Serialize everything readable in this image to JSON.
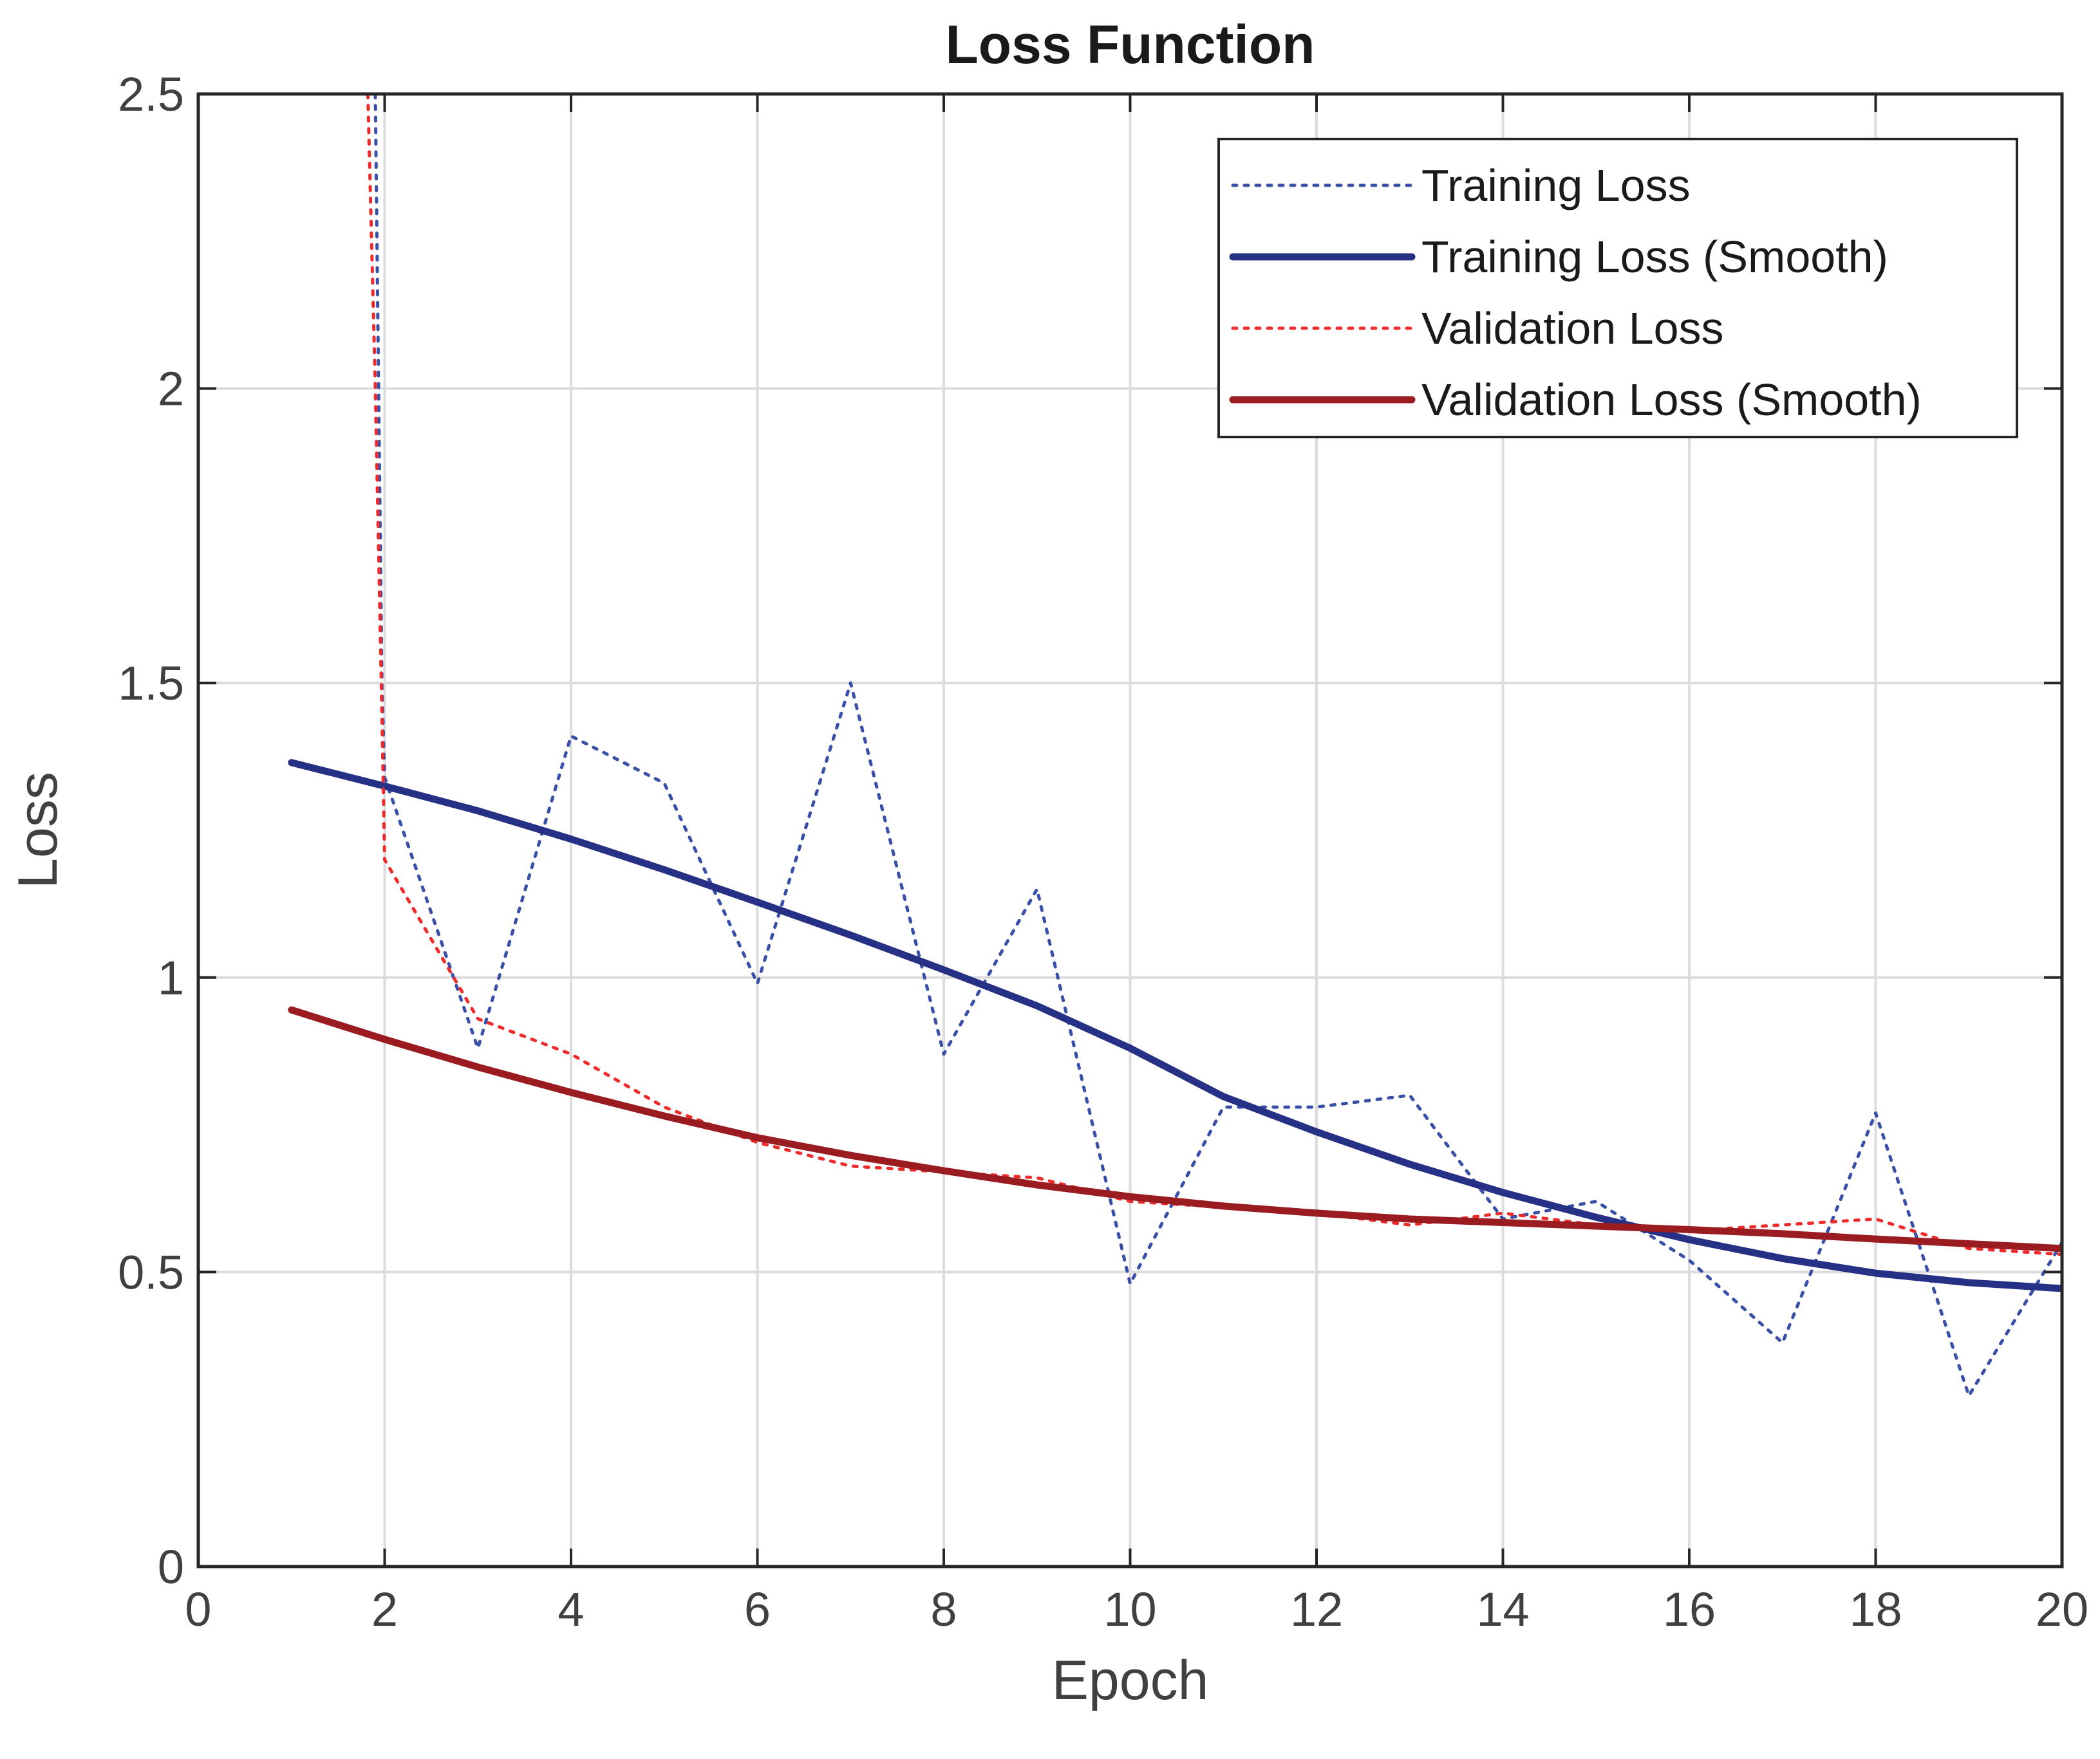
{
  "chart_data": {
    "type": "line",
    "title": "Loss Function",
    "xlabel": "Epoch",
    "ylabel": "Loss",
    "xlim": [
      0,
      20
    ],
    "ylim": [
      0,
      2.5
    ],
    "xticks": [
      0,
      2,
      4,
      6,
      8,
      10,
      12,
      14,
      16,
      18,
      20
    ],
    "yticks": [
      0,
      0.5,
      1,
      1.5,
      2,
      2.5
    ],
    "xtick_labels": [
      "0",
      "2",
      "4",
      "6",
      "8",
      "10",
      "12",
      "14",
      "16",
      "18",
      "20"
    ],
    "ytick_labels": [
      "0",
      "0.5",
      "1",
      "1.5",
      "2",
      "2.5"
    ],
    "grid": true,
    "legend_position": "top-right",
    "series": [
      {
        "name": "Training Loss",
        "style": "dotted",
        "color": "#3a4fa8",
        "x": [
          1.9,
          1.97,
          2,
          3,
          4,
          5,
          6,
          7,
          8,
          9,
          10,
          11,
          12,
          13,
          14,
          15,
          16,
          17,
          18,
          19,
          20
        ],
        "y": [
          2.5,
          1.5,
          1.34,
          0.88,
          1.41,
          1.33,
          0.99,
          1.5,
          0.87,
          1.15,
          0.48,
          0.78,
          0.78,
          0.8,
          0.59,
          0.62,
          0.52,
          0.38,
          0.77,
          0.29,
          0.55
        ]
      },
      {
        "name": "Training Loss (Smooth)",
        "style": "solid",
        "color": "#263085",
        "x": [
          1,
          2,
          3,
          4,
          5,
          6,
          7,
          8,
          9,
          10,
          11,
          12,
          13,
          14,
          15,
          16,
          17,
          18,
          19,
          20
        ],
        "y": [
          1.365,
          1.325,
          1.283,
          1.235,
          1.183,
          1.128,
          1.072,
          1.013,
          0.952,
          0.88,
          0.798,
          0.738,
          0.683,
          0.635,
          0.593,
          0.555,
          0.523,
          0.498,
          0.482,
          0.472
        ]
      },
      {
        "name": "Validation Loss",
        "style": "dotted",
        "color": "#ee2a2a",
        "x": [
          1.82,
          1.9,
          1.97,
          2,
          3,
          4,
          5,
          6,
          7,
          8,
          9,
          10,
          11,
          12,
          13,
          14,
          15,
          16,
          17,
          18,
          19,
          20
        ],
        "y": [
          2.5,
          2.0,
          1.45,
          1.2,
          0.93,
          0.87,
          0.78,
          0.72,
          0.68,
          0.67,
          0.66,
          0.62,
          0.61,
          0.6,
          0.58,
          0.6,
          0.58,
          0.57,
          0.58,
          0.59,
          0.54,
          0.53
        ]
      },
      {
        "name": "Validation Loss (Smooth)",
        "style": "solid",
        "color": "#9b1c20",
        "x": [
          1,
          2,
          3,
          4,
          5,
          6,
          7,
          8,
          9,
          10,
          11,
          12,
          13,
          14,
          15,
          16,
          17,
          18,
          19,
          20
        ],
        "y": [
          0.945,
          0.895,
          0.848,
          0.805,
          0.765,
          0.728,
          0.698,
          0.672,
          0.648,
          0.628,
          0.612,
          0.6,
          0.59,
          0.584,
          0.578,
          0.572,
          0.565,
          0.556,
          0.548,
          0.54
        ]
      }
    ]
  }
}
